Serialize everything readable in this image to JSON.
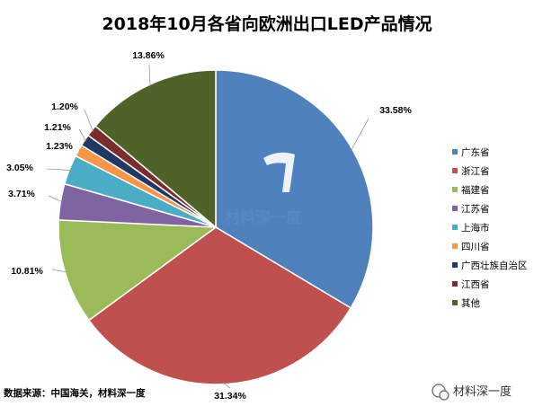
{
  "chart_data": {
    "type": "pie",
    "title": "2018年10月各省向欧洲出口LED产品情况",
    "series": [
      {
        "name": "广东省",
        "value": 33.58,
        "label": "33.58%",
        "color": "#4f81bd"
      },
      {
        "name": "浙江省",
        "value": 31.34,
        "label": "31.34%",
        "color": "#c0504d"
      },
      {
        "name": "福建省",
        "value": 10.81,
        "label": "10.81%",
        "color": "#9bbb59"
      },
      {
        "name": "江苏省",
        "value": 3.71,
        "label": "3.71%",
        "color": "#8064a2"
      },
      {
        "name": "上海市",
        "value": 3.05,
        "label": "3.05%",
        "color": "#4bacc6"
      },
      {
        "name": "四川省",
        "value": 1.23,
        "label": "1.23%",
        "color": "#f79646"
      },
      {
        "name": "广西壮族自治区",
        "value": 1.21,
        "label": "1.21%",
        "color": "#1f3864"
      },
      {
        "name": "江西省",
        "value": 1.2,
        "label": "1.20%",
        "color": "#7b2c2c"
      },
      {
        "name": "其他",
        "value": 13.86,
        "label": "13.86%",
        "color": "#4f6228"
      }
    ],
    "legend_position": "right",
    "source": "数据来源：中国海关，材料深一度"
  },
  "watermark": {
    "text": "材料深一度"
  },
  "brand": {
    "text": "材料深一度"
  }
}
